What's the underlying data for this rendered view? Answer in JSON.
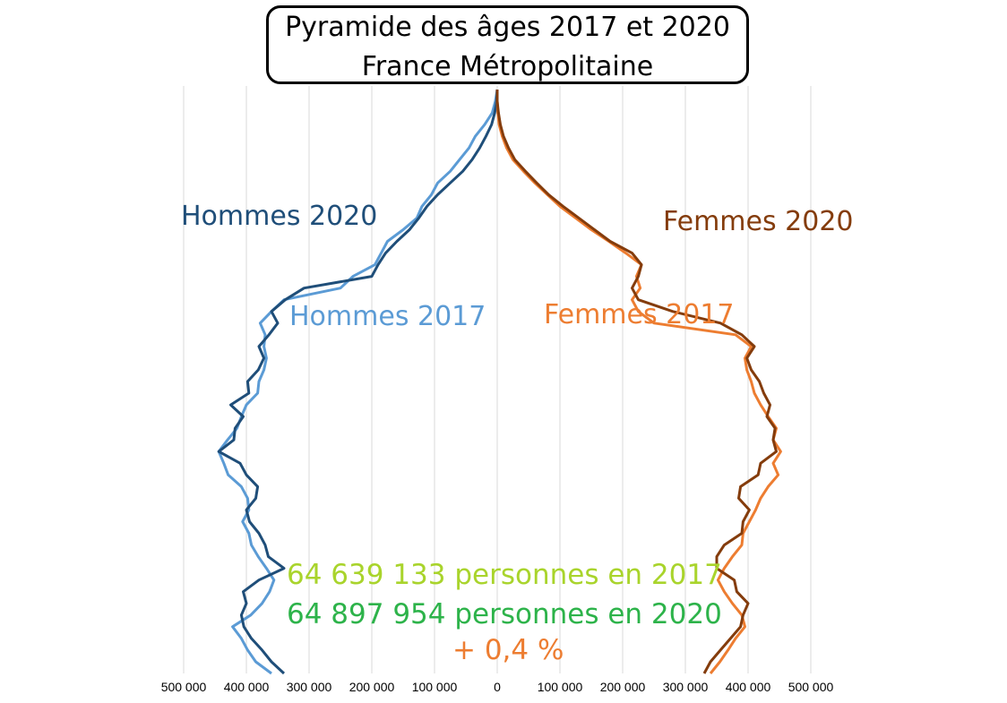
{
  "chart_data": {
    "type": "line",
    "title": "Pyramide des âges 2017 et 2020",
    "subtitle": "France Métropolitaine",
    "x_tick_labels": [
      "500 000",
      "400 000",
      "300 000",
      "200 000",
      "100 000",
      "0",
      "100 000",
      "200 000",
      "300 000",
      "400 000",
      "500 000"
    ],
    "x_ticks": [
      -500000,
      -400000,
      -300000,
      -200000,
      -100000,
      0,
      100000,
      200000,
      300000,
      400000,
      500000
    ],
    "xlim": [
      -500000,
      500000
    ],
    "ylim": [
      0,
      100
    ],
    "grid": "vertical",
    "series": [
      {
        "name": "Hommes 2017",
        "color": "#5b9bd5",
        "side": "left",
        "ages": [
          0,
          2,
          4,
          6,
          8,
          10,
          12,
          14,
          16,
          18,
          20,
          22,
          24,
          26,
          28,
          30,
          32,
          34,
          36,
          38,
          40,
          42,
          44,
          46,
          48,
          50,
          52,
          54,
          56,
          58,
          60,
          62,
          64,
          66,
          68,
          70,
          72,
          74,
          76,
          78,
          80,
          82,
          84,
          86,
          88,
          90,
          92,
          94,
          96,
          98,
          100
        ],
        "values": [
          360000,
          385000,
          398000,
          408000,
          422000,
          393000,
          375000,
          363000,
          356000,
          368000,
          381000,
          392000,
          396000,
          406000,
          396000,
          398000,
          408000,
          429000,
          436000,
          444000,
          430000,
          415000,
          408000,
          400000,
          382000,
          380000,
          372000,
          368000,
          372000,
          370000,
          378000,
          360000,
          340000,
          250000,
          230000,
          195000,
          185000,
          175000,
          150000,
          128000,
          120000,
          105000,
          95000,
          75000,
          60000,
          45000,
          35000,
          20000,
          8000,
          3000,
          0
        ]
      },
      {
        "name": "Hommes 2020",
        "color": "#1f4e79",
        "side": "left",
        "ages": [
          0,
          2,
          4,
          6,
          8,
          10,
          12,
          14,
          16,
          18,
          20,
          22,
          24,
          26,
          28,
          30,
          32,
          34,
          36,
          38,
          40,
          42,
          44,
          46,
          48,
          50,
          52,
          54,
          56,
          58,
          60,
          62,
          64,
          66,
          68,
          70,
          72,
          74,
          76,
          78,
          80,
          82,
          84,
          86,
          88,
          90,
          92,
          94,
          96,
          98,
          100
        ],
        "values": [
          340000,
          360000,
          375000,
          392000,
          404000,
          408000,
          400000,
          405000,
          380000,
          340000,
          365000,
          370000,
          380000,
          395000,
          400000,
          385000,
          382000,
          400000,
          410000,
          444000,
          420000,
          418000,
          405000,
          425000,
          396000,
          398000,
          381000,
          372000,
          380000,
          364000,
          350000,
          360000,
          338000,
          308000,
          200000,
          190000,
          178000,
          160000,
          140000,
          125000,
          112000,
          95000,
          75000,
          55000,
          40000,
          28000,
          18000,
          9000,
          4000,
          1000,
          0
        ]
      },
      {
        "name": "Femmes 2017",
        "color": "#ed7d31",
        "side": "right",
        "ages": [
          0,
          2,
          4,
          6,
          8,
          10,
          12,
          14,
          16,
          18,
          20,
          22,
          24,
          26,
          28,
          30,
          32,
          34,
          36,
          38,
          40,
          42,
          44,
          46,
          48,
          50,
          52,
          54,
          56,
          58,
          60,
          62,
          64,
          66,
          68,
          70,
          72,
          74,
          76,
          78,
          80,
          82,
          84,
          86,
          88,
          90,
          92,
          94,
          96,
          98,
          100
        ],
        "values": [
          340000,
          355000,
          368000,
          380000,
          395000,
          390000,
          375000,
          362000,
          352000,
          362000,
          375000,
          390000,
          392000,
          402000,
          412000,
          420000,
          432000,
          448000,
          440000,
          452000,
          440000,
          445000,
          432000,
          420000,
          410000,
          405000,
          398000,
          395000,
          405000,
          380000,
          250000,
          225000,
          215000,
          228000,
          222000,
          230000,
          205000,
          178000,
          150000,
          125000,
          100000,
          80000,
          60000,
          42000,
          25000,
          15000,
          8000,
          3000,
          1000,
          0,
          0
        ]
      },
      {
        "name": "Femmes 2020",
        "color": "#843c0c",
        "side": "right",
        "ages": [
          0,
          2,
          4,
          6,
          8,
          10,
          12,
          14,
          16,
          18,
          20,
          22,
          24,
          26,
          28,
          30,
          32,
          34,
          36,
          38,
          40,
          42,
          44,
          46,
          48,
          50,
          52,
          54,
          56,
          58,
          60,
          62,
          64,
          66,
          68,
          70,
          72,
          74,
          76,
          78,
          80,
          82,
          84,
          86,
          88,
          90,
          92,
          94,
          96,
          98,
          100
        ],
        "values": [
          330000,
          340000,
          356000,
          372000,
          388000,
          392000,
          400000,
          382000,
          378000,
          350000,
          350000,
          362000,
          390000,
          392000,
          402000,
          385000,
          388000,
          416000,
          420000,
          445000,
          440000,
          443000,
          430000,
          435000,
          425000,
          418000,
          405000,
          398000,
          410000,
          390000,
          356000,
          280000,
          225000,
          215000,
          225000,
          230000,
          215000,
          180000,
          155000,
          130000,
          105000,
          82000,
          63000,
          45000,
          28000,
          18000,
          10000,
          5000,
          2000,
          0,
          0
        ]
      }
    ]
  },
  "labels": {
    "hommes_2020": "Hommes 2020",
    "hommes_2017": "Hommes 2017",
    "femmes_2020": "Femmes 2020",
    "femmes_2017": "Femmes 2017",
    "colors": {
      "hommes_2020": "#1f4e79",
      "hommes_2017": "#5b9bd5",
      "femmes_2020": "#843c0c",
      "femmes_2017": "#ed7d31"
    }
  },
  "stats": {
    "total_2017": "64 639 133 personnes en 2017",
    "total_2020": "64 897 954 personnes en 2020",
    "change": "+ 0,4 %",
    "colors": {
      "total_2017": "#a9d42c",
      "total_2020": "#2db34a",
      "change": "#ed7d31"
    }
  }
}
